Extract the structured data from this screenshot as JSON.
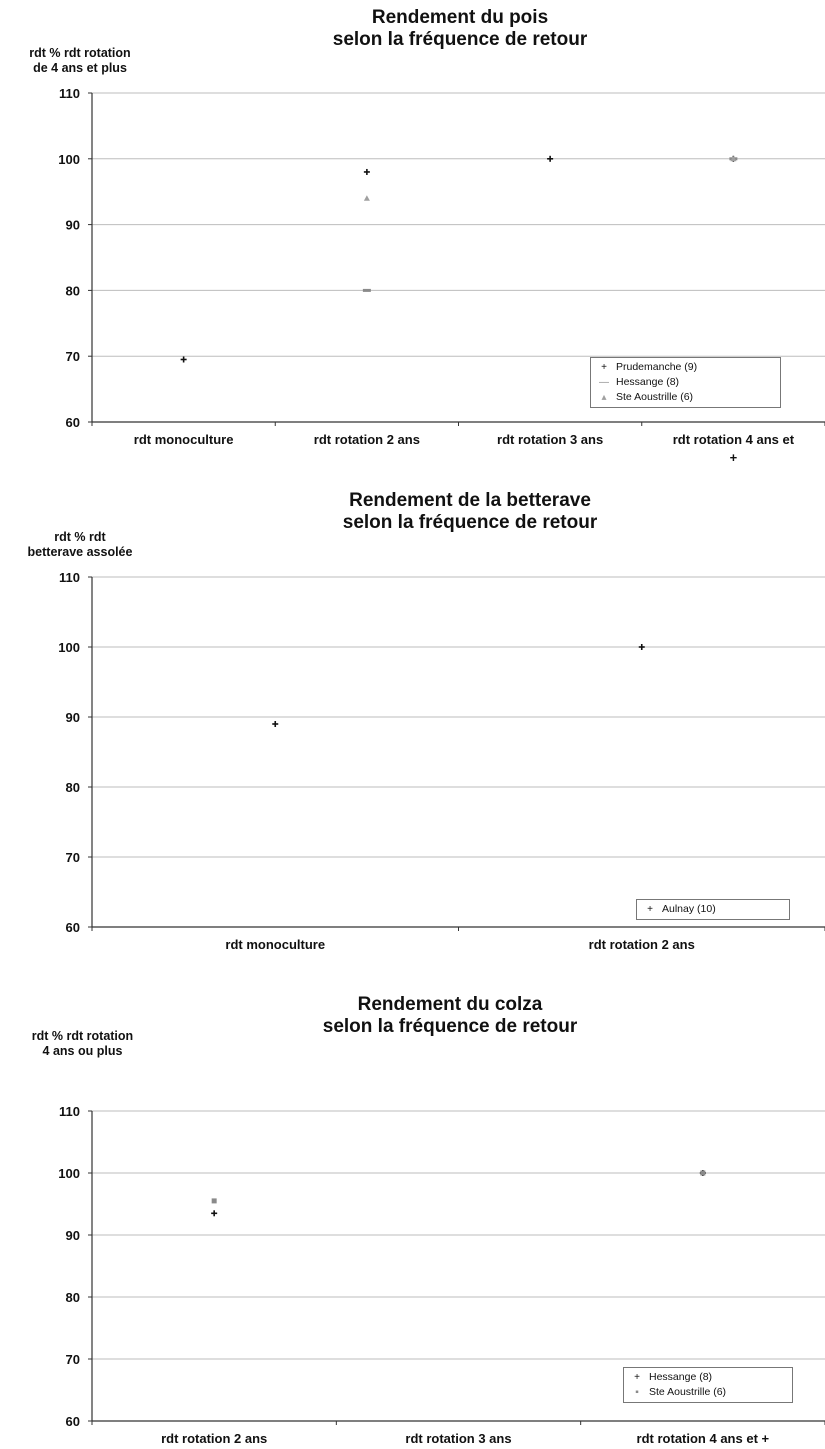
{
  "chart_data": [
    {
      "type": "scatter",
      "title": "Rendement du pois\nselon la fréquence de retour",
      "ylabel": "rdt % rdt rotation\nde 4 ans et plus",
      "categories": [
        "rdt monoculture",
        "rdt rotation 2 ans",
        "rdt rotation 3 ans",
        "rdt rotation 4 ans et\n+"
      ],
      "ylim": [
        60,
        110
      ],
      "yticks": [
        60,
        70,
        80,
        90,
        100,
        110
      ],
      "grid": true,
      "legend_position": "bottom-right",
      "series": [
        {
          "name": "Prudemanche (9)",
          "marker": "+",
          "color": "#111111",
          "values": [
            69.5,
            98,
            100,
            100
          ]
        },
        {
          "name": "Hessange (8)",
          "marker": "-",
          "color": "#8a8a8a",
          "values": [
            null,
            80,
            null,
            100
          ]
        },
        {
          "name": "Ste Aoustrille (6)",
          "marker": "^",
          "color": "#a0a0a0",
          "values": [
            null,
            94,
            null,
            100
          ]
        }
      ]
    },
    {
      "type": "scatter",
      "title": "Rendement de la betterave\nselon la fréquence de retour",
      "ylabel": "rdt % rdt\nbetterave assolée",
      "categories": [
        "rdt monoculture",
        "rdt rotation 2 ans"
      ],
      "ylim": [
        60,
        110
      ],
      "yticks": [
        60,
        70,
        80,
        90,
        100,
        110
      ],
      "grid": true,
      "legend_position": "bottom-right",
      "series": [
        {
          "name": "Aulnay (10)",
          "marker": "+",
          "color": "#111111",
          "values": [
            89,
            100
          ]
        }
      ]
    },
    {
      "type": "scatter",
      "title": "Rendement du colza\nselon la fréquence de retour",
      "ylabel": "rdt % rdt rotation\n4 ans ou plus",
      "categories": [
        "rdt rotation 2 ans",
        "rdt rotation 3 ans",
        "rdt rotation 4 ans et +"
      ],
      "ylim": [
        60,
        110
      ],
      "yticks": [
        60,
        70,
        80,
        90,
        100,
        110
      ],
      "grid": true,
      "legend_position": "bottom-right",
      "series": [
        {
          "name": "Hessange (8)",
          "marker": "+",
          "color": "#111111",
          "values": [
            93.5,
            null,
            100
          ]
        },
        {
          "name": "Ste Aoustrille (6)",
          "marker": "s",
          "color": "#8a8a8a",
          "values": [
            95.5,
            null,
            100
          ]
        }
      ]
    }
  ]
}
